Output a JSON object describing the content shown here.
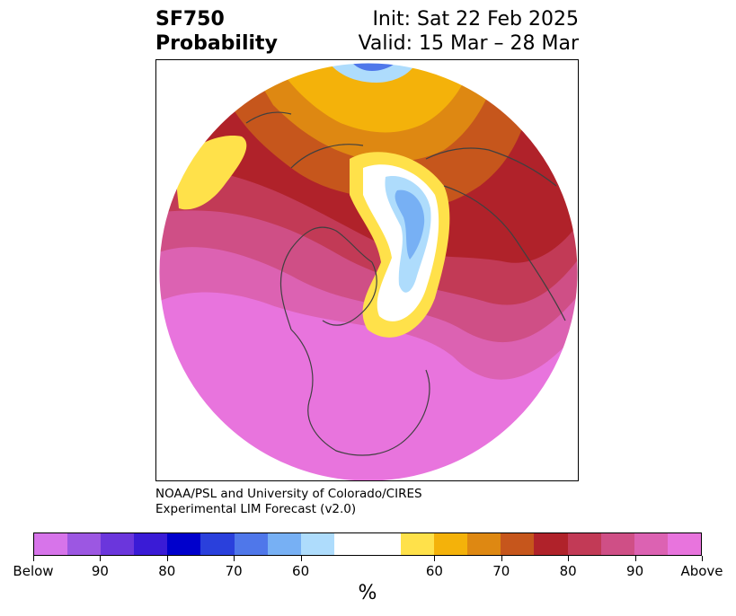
{
  "title": {
    "left_line1": "SF750",
    "left_line2": "Probability",
    "right_line1": "Init: Sat 22 Feb 2025",
    "right_line2": "Valid: 15 Mar – 28 Mar"
  },
  "credit": {
    "line1": "NOAA/PSL and University of Colorado/CIRES",
    "line2": "Experimental LIM Forecast (v2.0)"
  },
  "colorbar": {
    "unit": "%",
    "colors": [
      "#d774ea",
      "#9c57e2",
      "#6b36dc",
      "#3a1bd6",
      "#0000cc",
      "#2a40dc",
      "#4f77ea",
      "#77b0f4",
      "#aedcfc",
      "#ffffff",
      "#ffe14a",
      "#f4b20a",
      "#de8812",
      "#c6561c",
      "#b0222a",
      "#c23a56",
      "#cf4f86",
      "#dc62b2",
      "#e874dd"
    ],
    "tick_labels": [
      "Below",
      "90",
      "80",
      "70",
      "60",
      "60",
      "70",
      "80",
      "90",
      "Above"
    ],
    "legend_colors": {
      "below_strong": "#e874dd",
      "above_strong": "#e874dd"
    }
  },
  "map": {
    "projection": "north-polar-stereographic",
    "regions": [
      "Arctic",
      "North America",
      "Europe",
      "Asia"
    ]
  }
}
